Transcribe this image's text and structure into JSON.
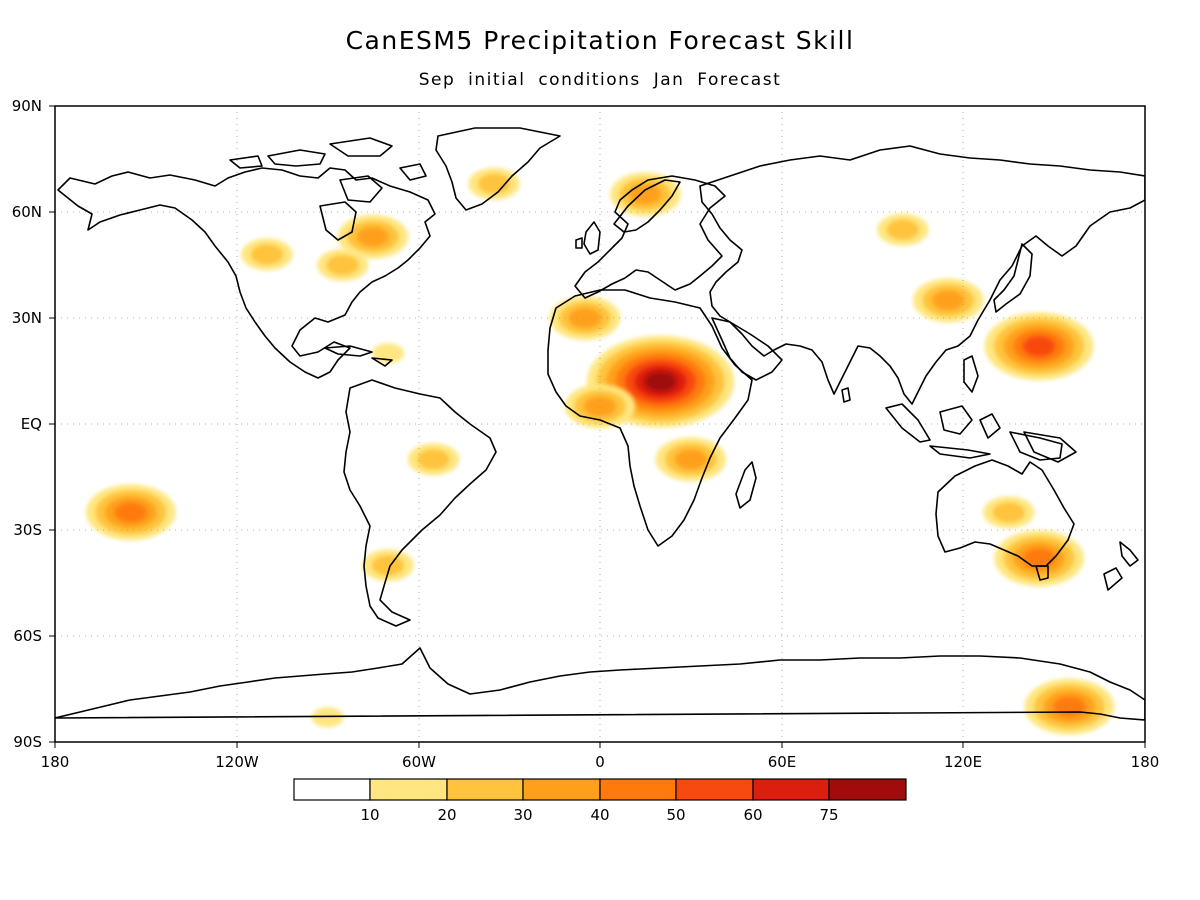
{
  "map": {
    "title": "CanESM5 Precipitation Forecast Skill",
    "subtitle": "Sep initial conditions   Jan Forecast",
    "lat_ticks": [
      "90N",
      "60N",
      "30N",
      "EQ",
      "30S",
      "60S",
      "90S"
    ],
    "lon_ticks": [
      "180",
      "120W",
      "60W",
      "0",
      "60E",
      "120E",
      "180"
    ],
    "projection": "cylindrical equidistant",
    "extent": {
      "lon": [
        -180,
        180
      ],
      "lat": [
        -90,
        90
      ]
    },
    "grid": "dotted"
  },
  "colorbar": {
    "labels": [
      "10",
      "20",
      "30",
      "40",
      "50",
      "60",
      "75"
    ],
    "colors": [
      "#ffffff",
      "#ffe680",
      "#ffc33c",
      "#ffa01a",
      "#ff7a0a",
      "#f84a10",
      "#dc1e0e",
      "#a00c0c"
    ]
  },
  "skill_field": [
    {
      "region": "Greenland",
      "lon": -35,
      "lat": 68,
      "level": 2
    },
    {
      "region": "Canada",
      "lon": -75,
      "lat": 53,
      "level": 3
    },
    {
      "region": "Great Lakes",
      "lon": -85,
      "lat": 45,
      "level": 2
    },
    {
      "region": "Western US",
      "lon": -110,
      "lat": 48,
      "level": 2
    },
    {
      "region": "Caribbean",
      "lon": -70,
      "lat": 20,
      "level": 1
    },
    {
      "region": "Amazon",
      "lon": -55,
      "lat": -10,
      "level": 2
    },
    {
      "region": "Patagonia",
      "lon": -70,
      "lat": -40,
      "level": 2
    },
    {
      "region": "Sahara",
      "lon": -5,
      "lat": 30,
      "level": 3
    },
    {
      "region": "Central Africa",
      "lon": 20,
      "lat": 12,
      "level": 7
    },
    {
      "region": "West Africa",
      "lon": 0,
      "lat": 5,
      "level": 3
    },
    {
      "region": "East Africa",
      "lon": 30,
      "lat": -10,
      "level": 3
    },
    {
      "region": "Scandinavia",
      "lon": 15,
      "lat": 65,
      "level": 3
    },
    {
      "region": "Siberia",
      "lon": 100,
      "lat": 55,
      "level": 2
    },
    {
      "region": "East Asia",
      "lon": 115,
      "lat": 35,
      "level": 3
    },
    {
      "region": "West Pacific",
      "lon": 145,
      "lat": 22,
      "level": 5
    },
    {
      "region": "Australia",
      "lon": 135,
      "lat": -25,
      "level": 2
    },
    {
      "region": "SE Australia",
      "lon": 145,
      "lat": -38,
      "level": 4
    },
    {
      "region": "South Pacific",
      "lon": -155,
      "lat": -25,
      "level": 4
    },
    {
      "region": "Antarctica",
      "lon": 155,
      "lat": -80,
      "level": 4
    },
    {
      "region": "Antarctic coast",
      "lon": -90,
      "lat": -83,
      "level": 1
    }
  ]
}
